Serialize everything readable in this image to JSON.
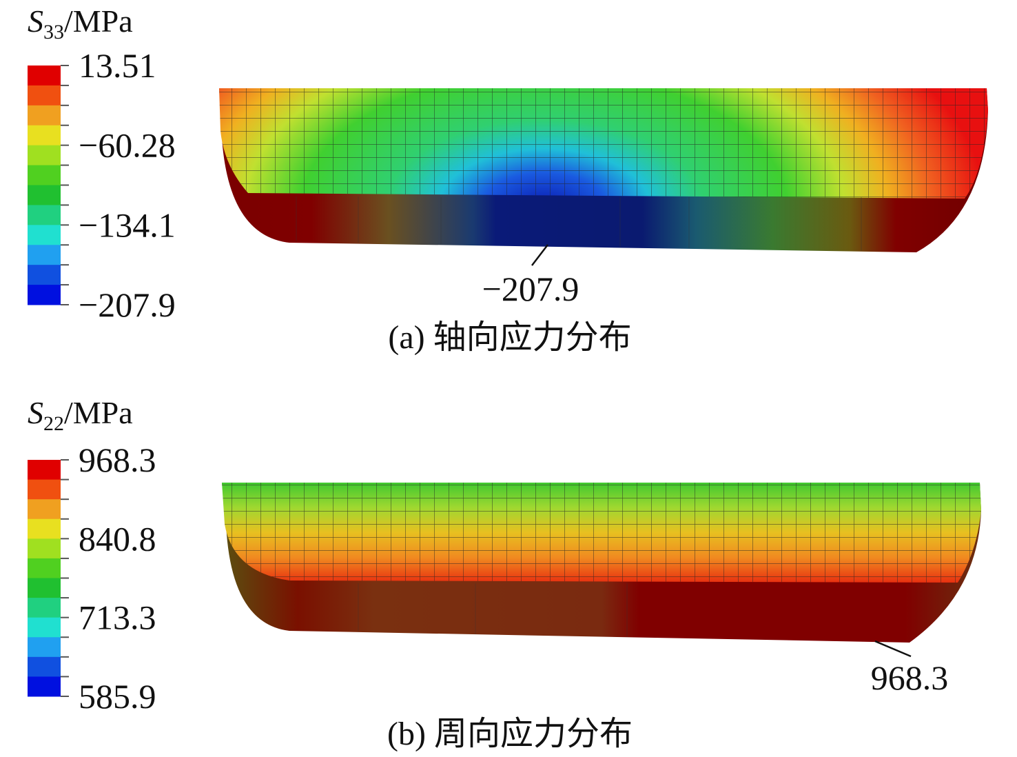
{
  "panels": [
    {
      "legend": {
        "symbol": "S",
        "subscript": "33",
        "unit": "/MPa",
        "labels": [
          "13.51",
          "−60.28",
          "−134.1",
          "−207.9"
        ]
      },
      "annotation": "−207.9",
      "caption": "(a) 轴向应力分布"
    },
    {
      "legend": {
        "symbol": "S",
        "subscript": "22",
        "unit": "/MPa",
        "labels": [
          "968.3",
          "840.8",
          "713.3",
          "585.9"
        ]
      },
      "annotation": "968.3",
      "caption": "(b) 周向应力分布"
    }
  ]
}
